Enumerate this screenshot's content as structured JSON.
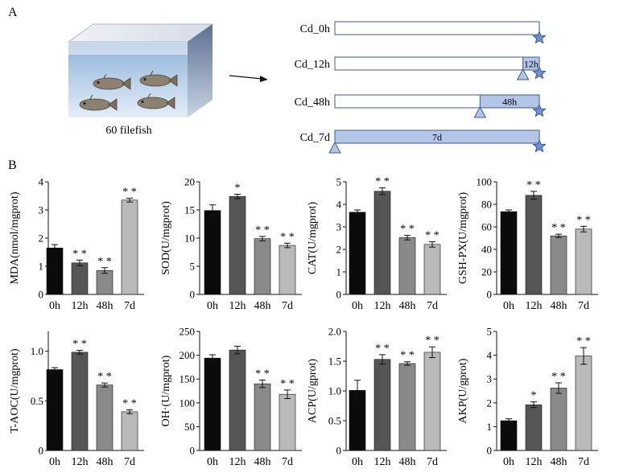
{
  "panel_a": {
    "label": "A",
    "tank_label": "60 filefish",
    "timelines": [
      {
        "label": "Cd_0h",
        "exposure": "",
        "start_frac": 1.0
      },
      {
        "label": "Cd_12h",
        "exposure": "12h",
        "start_frac": 0.92
      },
      {
        "label": "Cd_48h",
        "exposure": "48h",
        "start_frac": 0.71
      },
      {
        "label": "Cd_7d",
        "exposure": "7d",
        "start_frac": 0.0
      }
    ]
  },
  "panel_b": {
    "label": "B"
  },
  "colors": {
    "bars": [
      "#0b0b0b",
      "#555555",
      "#8a8a8a",
      "#b9b9b9"
    ],
    "timeline_fill": "#b4c6e7",
    "timeline_stroke": "#3f5a8a",
    "star": "#6e8fd0",
    "water_top": "#8fb3da",
    "water_bottom": "#dce8f5"
  },
  "chart_data": [
    {
      "type": "bar",
      "ylabel": "MDA(nmol/mgprot)",
      "categories": [
        "0h",
        "12h",
        "48h",
        "7d"
      ],
      "values": [
        1.65,
        1.12,
        0.85,
        3.35
      ],
      "errors": [
        0.12,
        0.1,
        0.1,
        0.07
      ],
      "significance": [
        "",
        "**",
        "**",
        "**"
      ],
      "ylim": [
        0,
        4
      ],
      "yticks": [
        0,
        1,
        2,
        3,
        4
      ],
      "tick_labels": [
        "0",
        "1",
        "2",
        "3",
        "4"
      ]
    },
    {
      "type": "bar",
      "ylabel": "SOD(U/mgprot)",
      "categories": [
        "0h",
        "12h",
        "48h",
        "7d"
      ],
      "values": [
        14.9,
        17.4,
        9.9,
        8.7
      ],
      "errors": [
        1.0,
        0.4,
        0.4,
        0.4
      ],
      "significance": [
        "",
        "*",
        "**",
        "**"
      ],
      "ylim": [
        0,
        20
      ],
      "yticks": [
        0,
        5,
        10,
        15,
        20
      ],
      "tick_labels": [
        "0",
        "5",
        "10",
        "15",
        "20"
      ]
    },
    {
      "type": "bar",
      "ylabel": "CAT(U/mgprot)",
      "categories": [
        "0h",
        "12h",
        "48h",
        "7d"
      ],
      "values": [
        3.65,
        4.58,
        2.52,
        2.22
      ],
      "errors": [
        0.1,
        0.15,
        0.1,
        0.12
      ],
      "significance": [
        "",
        "**",
        "**",
        "**"
      ],
      "ylim": [
        0,
        5
      ],
      "yticks": [
        0,
        1,
        2,
        3,
        4,
        5
      ],
      "tick_labels": [
        "0",
        "1",
        "2",
        "3",
        "4",
        "5"
      ]
    },
    {
      "type": "bar",
      "ylabel": "GSH-PX(U/mgprot)",
      "categories": [
        "0h",
        "12h",
        "48h",
        "7d"
      ],
      "values": [
        73.5,
        88,
        52,
        58
      ],
      "errors": [
        1.5,
        3.5,
        1.5,
        2.5
      ],
      "significance": [
        "",
        "**",
        "**",
        "**"
      ],
      "ylim": [
        0,
        100
      ],
      "yticks": [
        0,
        20,
        40,
        60,
        80,
        100
      ],
      "tick_labels": [
        "0",
        "20",
        "40",
        "60",
        "80",
        "100"
      ]
    },
    {
      "type": "bar",
      "ylabel": "T-AOC(U/mgprot)",
      "categories": [
        "0h",
        "12h",
        "48h",
        "7d"
      ],
      "values": [
        0.815,
        0.99,
        0.66,
        0.39
      ],
      "errors": [
        0.02,
        0.02,
        0.02,
        0.02
      ],
      "significance": [
        "",
        "**",
        "**",
        "**"
      ],
      "ylim": [
        0,
        1.2
      ],
      "yticks": [
        0,
        0.5,
        1.0
      ],
      "tick_labels": [
        "0",
        "0.5",
        "1.0"
      ]
    },
    {
      "type": "bar",
      "ylabel": "OH·(U/mgprot)",
      "categories": [
        "0h",
        "12h",
        "48h",
        "7d"
      ],
      "values": [
        194,
        211,
        140,
        118
      ],
      "errors": [
        7,
        8,
        8,
        9
      ],
      "significance": [
        "",
        "",
        "**",
        "**"
      ],
      "ylim": [
        0,
        250
      ],
      "yticks": [
        0,
        50,
        100,
        150,
        200,
        250
      ],
      "tick_labels": [
        "0",
        "50",
        "100",
        "150",
        "200",
        "250"
      ]
    },
    {
      "type": "bar",
      "ylabel": "ACP(U/gprot)",
      "categories": [
        "0h",
        "12h",
        "48h",
        "7d"
      ],
      "values": [
        1.01,
        1.53,
        1.46,
        1.65
      ],
      "errors": [
        0.17,
        0.08,
        0.03,
        0.09
      ],
      "significance": [
        "",
        "**",
        "**",
        "**"
      ],
      "ylim": [
        0,
        2.0
      ],
      "yticks": [
        0,
        0.5,
        1.0,
        1.5,
        2.0
      ],
      "tick_labels": [
        "0",
        "0.5",
        "1.0",
        "1.5",
        "2.0"
      ]
    },
    {
      "type": "bar",
      "ylabel": "AKP(U/gprot)",
      "categories": [
        "0h",
        "12h",
        "48h",
        "7d"
      ],
      "values": [
        1.25,
        1.92,
        2.62,
        3.97
      ],
      "errors": [
        0.08,
        0.12,
        0.22,
        0.35
      ],
      "significance": [
        "",
        "*",
        "**",
        "**"
      ],
      "ylim": [
        0,
        5
      ],
      "yticks": [
        0,
        1,
        2,
        3,
        4,
        5
      ],
      "tick_labels": [
        "0",
        "1",
        "2",
        "3",
        "4",
        "5"
      ]
    }
  ]
}
